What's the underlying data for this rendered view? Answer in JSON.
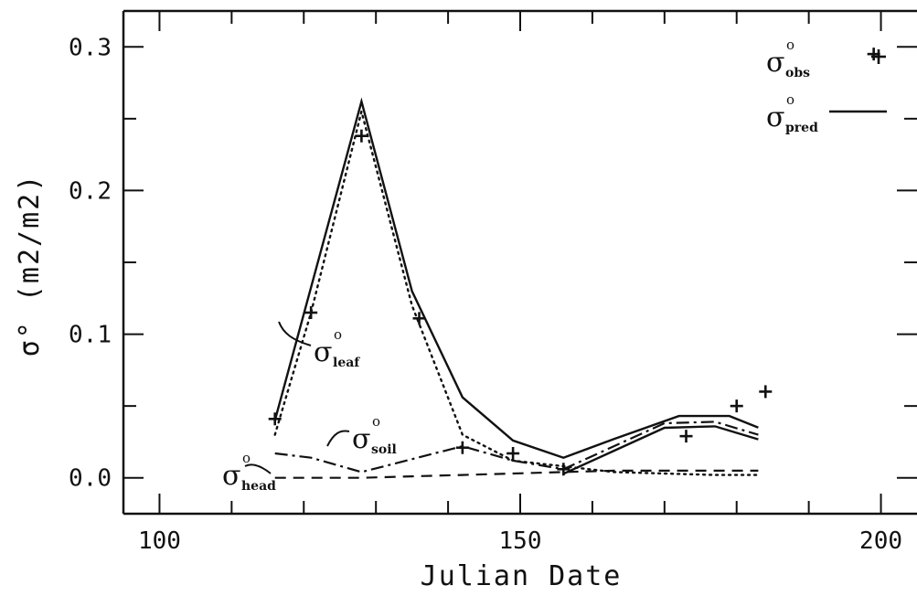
{
  "chart_data": {
    "type": "line",
    "title": "",
    "xlabel": "Julian Date",
    "ylabel": "σ°  (m2/m2)",
    "xlim": [
      95,
      205
    ],
    "ylim": [
      -0.025,
      0.325
    ],
    "x_ticks": [
      100,
      150,
      200
    ],
    "x_tick_labels": [
      "100",
      "150",
      "200"
    ],
    "y_ticks": [
      0.0,
      0.1,
      0.2,
      0.3
    ],
    "y_tick_labels": [
      "0.0",
      "0.1",
      "0.2",
      "0.3"
    ],
    "grid": false,
    "legend_position": "top-right",
    "legend": [
      {
        "symbol": "σ",
        "sup": "o",
        "sub": "obs",
        "marker": "+"
      },
      {
        "symbol": "σ",
        "sup": "o",
        "sub": "pred",
        "marker": "solid line"
      }
    ],
    "series": [
      {
        "name": "σ°pred",
        "style": "solid",
        "x": [
          116,
          128,
          135,
          142,
          149,
          156,
          163,
          172,
          179,
          183
        ],
        "y": [
          0.04,
          0.262,
          0.13,
          0.056,
          0.026,
          0.014,
          0.027,
          0.043,
          0.043,
          0.035
        ]
      },
      {
        "name": "σ°obs",
        "style": "plus",
        "x": [
          116,
          121,
          128,
          136,
          142,
          149,
          156,
          173,
          180,
          184,
          199
        ],
        "y": [
          0.041,
          0.115,
          0.238,
          0.111,
          0.021,
          0.017,
          0.006,
          0.029,
          0.05,
          0.06,
          0.295
        ]
      },
      {
        "name": "σ°leaf",
        "style": "dotted",
        "x": [
          116,
          121,
          128,
          135,
          142,
          149,
          156,
          163,
          170,
          177,
          183
        ],
        "y": [
          0.03,
          0.115,
          0.255,
          0.12,
          0.03,
          0.012,
          0.008,
          0.004,
          0.003,
          0.002,
          0.002
        ]
      },
      {
        "name": "σ°soil",
        "style": "dash-dot",
        "x": [
          116,
          121,
          128,
          135,
          142,
          149,
          156,
          163,
          170,
          177,
          183
        ],
        "y": [
          0.017,
          0.014,
          0.004,
          0.013,
          0.022,
          0.012,
          0.006,
          0.022,
          0.038,
          0.039,
          0.03
        ]
      },
      {
        "name": "σ°head",
        "style": "dashed",
        "x": [
          116,
          121,
          128,
          135,
          142,
          149,
          156,
          163,
          170,
          177,
          183
        ],
        "y": [
          0.0,
          0.0,
          0.0,
          0.001,
          0.002,
          0.003,
          0.004,
          0.005,
          0.005,
          0.005,
          0.005
        ]
      }
    ],
    "annotations": [
      {
        "symbol": "σ",
        "sup": "o",
        "sub": "leaf"
      },
      {
        "symbol": "σ",
        "sup": "o",
        "sub": "soil"
      },
      {
        "symbol": "σ",
        "sup": "o",
        "sub": "head"
      }
    ]
  }
}
